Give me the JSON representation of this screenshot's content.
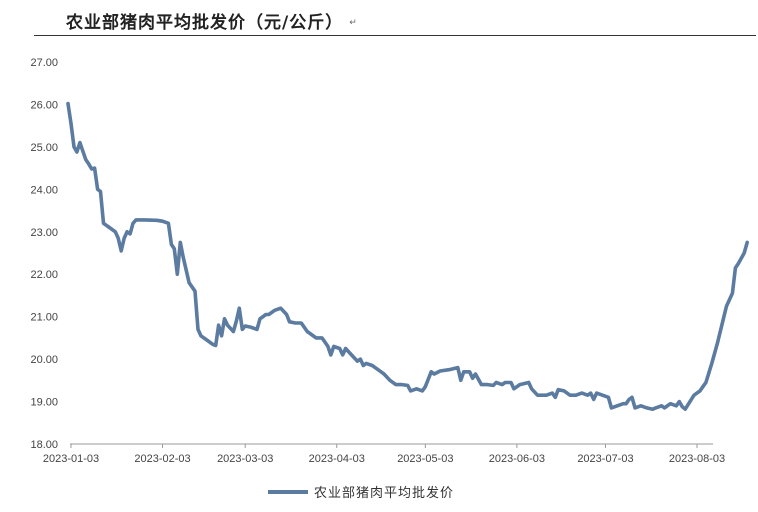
{
  "title": "农业部猪肉平均批发价（元/公斤）",
  "return_mark": "↵",
  "colors": {
    "series": "#5b7ba0",
    "axis": "#999999",
    "rule": "#333333"
  },
  "chart_data": {
    "type": "line",
    "title": "农业部猪肉平均批发价（元/公斤）",
    "xlabel": "",
    "ylabel": "",
    "ylim": [
      18.0,
      27.0
    ],
    "yticks": [
      "18.00",
      "19.00",
      "20.00",
      "21.00",
      "22.00",
      "23.00",
      "24.00",
      "25.00",
      "26.00",
      "27.00"
    ],
    "xticks": [
      "2023-01-03",
      "2023-02-03",
      "2023-03-03",
      "2023-04-03",
      "2023-05-03",
      "2023-06-03",
      "2023-07-03",
      "2023-08-03"
    ],
    "grid": false,
    "legend": "bottom",
    "series": [
      {
        "name": "农业部猪肉平均批发价",
        "points": [
          [
            "2023-01-02",
            26.02
          ],
          [
            "2023-01-03",
            25.55
          ],
          [
            "2023-01-04",
            25.0
          ],
          [
            "2023-01-05",
            24.88
          ],
          [
            "2023-01-06",
            25.1
          ],
          [
            "2023-01-07",
            24.9
          ],
          [
            "2023-01-08",
            24.7
          ],
          [
            "2023-01-09",
            24.6
          ],
          [
            "2023-01-10",
            24.48
          ],
          [
            "2023-01-11",
            24.5
          ],
          [
            "2023-01-12",
            24.0
          ],
          [
            "2023-01-13",
            23.95
          ],
          [
            "2023-01-14",
            23.2
          ],
          [
            "2023-01-16",
            23.1
          ],
          [
            "2023-01-18",
            23.0
          ],
          [
            "2023-01-19",
            22.85
          ],
          [
            "2023-01-20",
            22.55
          ],
          [
            "2023-01-21",
            22.85
          ],
          [
            "2023-01-22",
            23.0
          ],
          [
            "2023-01-23",
            22.95
          ],
          [
            "2023-01-24",
            23.2
          ],
          [
            "2023-01-25",
            23.28
          ],
          [
            "2023-01-28",
            23.28
          ],
          [
            "2023-02-01",
            23.27
          ],
          [
            "2023-02-03",
            23.25
          ],
          [
            "2023-02-05",
            23.2
          ],
          [
            "2023-02-06",
            22.7
          ],
          [
            "2023-02-07",
            22.6
          ],
          [
            "2023-02-08",
            22.0
          ],
          [
            "2023-02-09",
            22.75
          ],
          [
            "2023-02-10",
            22.4
          ],
          [
            "2023-02-12",
            21.8
          ],
          [
            "2023-02-14",
            21.6
          ],
          [
            "2023-02-15",
            20.7
          ],
          [
            "2023-02-16",
            20.55
          ],
          [
            "2023-02-18",
            20.45
          ],
          [
            "2023-02-20",
            20.35
          ],
          [
            "2023-02-21",
            20.32
          ],
          [
            "2023-02-22",
            20.8
          ],
          [
            "2023-02-23",
            20.55
          ],
          [
            "2023-02-24",
            20.95
          ],
          [
            "2023-02-25",
            20.8
          ],
          [
            "2023-02-27",
            20.65
          ],
          [
            "2023-02-28",
            20.9
          ],
          [
            "2023-03-01",
            21.2
          ],
          [
            "2023-03-02",
            20.7
          ],
          [
            "2023-03-03",
            20.78
          ],
          [
            "2023-03-05",
            20.75
          ],
          [
            "2023-03-07",
            20.7
          ],
          [
            "2023-03-08",
            20.95
          ],
          [
            "2023-03-10",
            21.05
          ],
          [
            "2023-03-11",
            21.05
          ],
          [
            "2023-03-13",
            21.15
          ],
          [
            "2023-03-15",
            21.2
          ],
          [
            "2023-03-17",
            21.05
          ],
          [
            "2023-03-18",
            20.88
          ],
          [
            "2023-03-20",
            20.85
          ],
          [
            "2023-03-22",
            20.85
          ],
          [
            "2023-03-24",
            20.65
          ],
          [
            "2023-03-25",
            20.6
          ],
          [
            "2023-03-27",
            20.5
          ],
          [
            "2023-03-29",
            20.5
          ],
          [
            "2023-03-31",
            20.3
          ],
          [
            "2023-04-01",
            20.1
          ],
          [
            "2023-04-02",
            20.3
          ],
          [
            "2023-04-04",
            20.25
          ],
          [
            "2023-04-05",
            20.1
          ],
          [
            "2023-04-06",
            20.25
          ],
          [
            "2023-04-08",
            20.1
          ],
          [
            "2023-04-10",
            19.95
          ],
          [
            "2023-04-11",
            20.0
          ],
          [
            "2023-04-12",
            19.85
          ],
          [
            "2023-04-13",
            19.9
          ],
          [
            "2023-04-15",
            19.85
          ],
          [
            "2023-04-17",
            19.75
          ],
          [
            "2023-04-19",
            19.65
          ],
          [
            "2023-04-21",
            19.5
          ],
          [
            "2023-04-23",
            19.4
          ],
          [
            "2023-04-25",
            19.4
          ],
          [
            "2023-04-27",
            19.38
          ],
          [
            "2023-04-28",
            19.25
          ],
          [
            "2023-04-30",
            19.3
          ],
          [
            "2023-05-02",
            19.25
          ],
          [
            "2023-05-03",
            19.35
          ],
          [
            "2023-05-05",
            19.7
          ],
          [
            "2023-05-06",
            19.65
          ],
          [
            "2023-05-08",
            19.72
          ],
          [
            "2023-05-11",
            19.75
          ],
          [
            "2023-05-14",
            19.8
          ],
          [
            "2023-05-15",
            19.5
          ],
          [
            "2023-05-16",
            19.7
          ],
          [
            "2023-05-18",
            19.7
          ],
          [
            "2023-05-19",
            19.55
          ],
          [
            "2023-05-20",
            19.65
          ],
          [
            "2023-05-22",
            19.4
          ],
          [
            "2023-05-24",
            19.4
          ],
          [
            "2023-05-26",
            19.38
          ],
          [
            "2023-05-27",
            19.45
          ],
          [
            "2023-05-29",
            19.4
          ],
          [
            "2023-05-30",
            19.45
          ],
          [
            "2023-06-01",
            19.45
          ],
          [
            "2023-06-02",
            19.3
          ],
          [
            "2023-06-04",
            19.4
          ],
          [
            "2023-06-07",
            19.45
          ],
          [
            "2023-06-08",
            19.3
          ],
          [
            "2023-06-10",
            19.15
          ],
          [
            "2023-06-13",
            19.15
          ],
          [
            "2023-06-15",
            19.2
          ],
          [
            "2023-06-16",
            19.1
          ],
          [
            "2023-06-17",
            19.28
          ],
          [
            "2023-06-19",
            19.25
          ],
          [
            "2023-06-21",
            19.15
          ],
          [
            "2023-06-23",
            19.15
          ],
          [
            "2023-06-25",
            19.2
          ],
          [
            "2023-06-27",
            19.15
          ],
          [
            "2023-06-28",
            19.2
          ],
          [
            "2023-06-29",
            19.05
          ],
          [
            "2023-06-30",
            19.2
          ],
          [
            "2023-07-02",
            19.15
          ],
          [
            "2023-07-04",
            19.1
          ],
          [
            "2023-07-05",
            18.85
          ],
          [
            "2023-07-07",
            18.9
          ],
          [
            "2023-07-09",
            18.95
          ],
          [
            "2023-07-10",
            18.95
          ],
          [
            "2023-07-11",
            19.05
          ],
          [
            "2023-07-12",
            19.1
          ],
          [
            "2023-07-13",
            18.85
          ],
          [
            "2023-07-15",
            18.9
          ],
          [
            "2023-07-17",
            18.85
          ],
          [
            "2023-07-19",
            18.82
          ],
          [
            "2023-07-20",
            18.85
          ],
          [
            "2023-07-22",
            18.9
          ],
          [
            "2023-07-23",
            18.85
          ],
          [
            "2023-07-25",
            18.95
          ],
          [
            "2023-07-27",
            18.9
          ],
          [
            "2023-07-28",
            19.0
          ],
          [
            "2023-07-29",
            18.88
          ],
          [
            "2023-07-30",
            18.82
          ],
          [
            "2023-08-02",
            19.15
          ],
          [
            "2023-08-04",
            19.25
          ],
          [
            "2023-08-05",
            19.35
          ],
          [
            "2023-08-06",
            19.45
          ],
          [
            "2023-08-08",
            19.9
          ],
          [
            "2023-08-10",
            20.4
          ],
          [
            "2023-08-13",
            21.25
          ],
          [
            "2023-08-15",
            21.55
          ],
          [
            "2023-08-16",
            22.15
          ],
          [
            "2023-08-17",
            22.25
          ],
          [
            "2023-08-19",
            22.5
          ],
          [
            "2023-08-20",
            22.75
          ]
        ]
      }
    ]
  }
}
